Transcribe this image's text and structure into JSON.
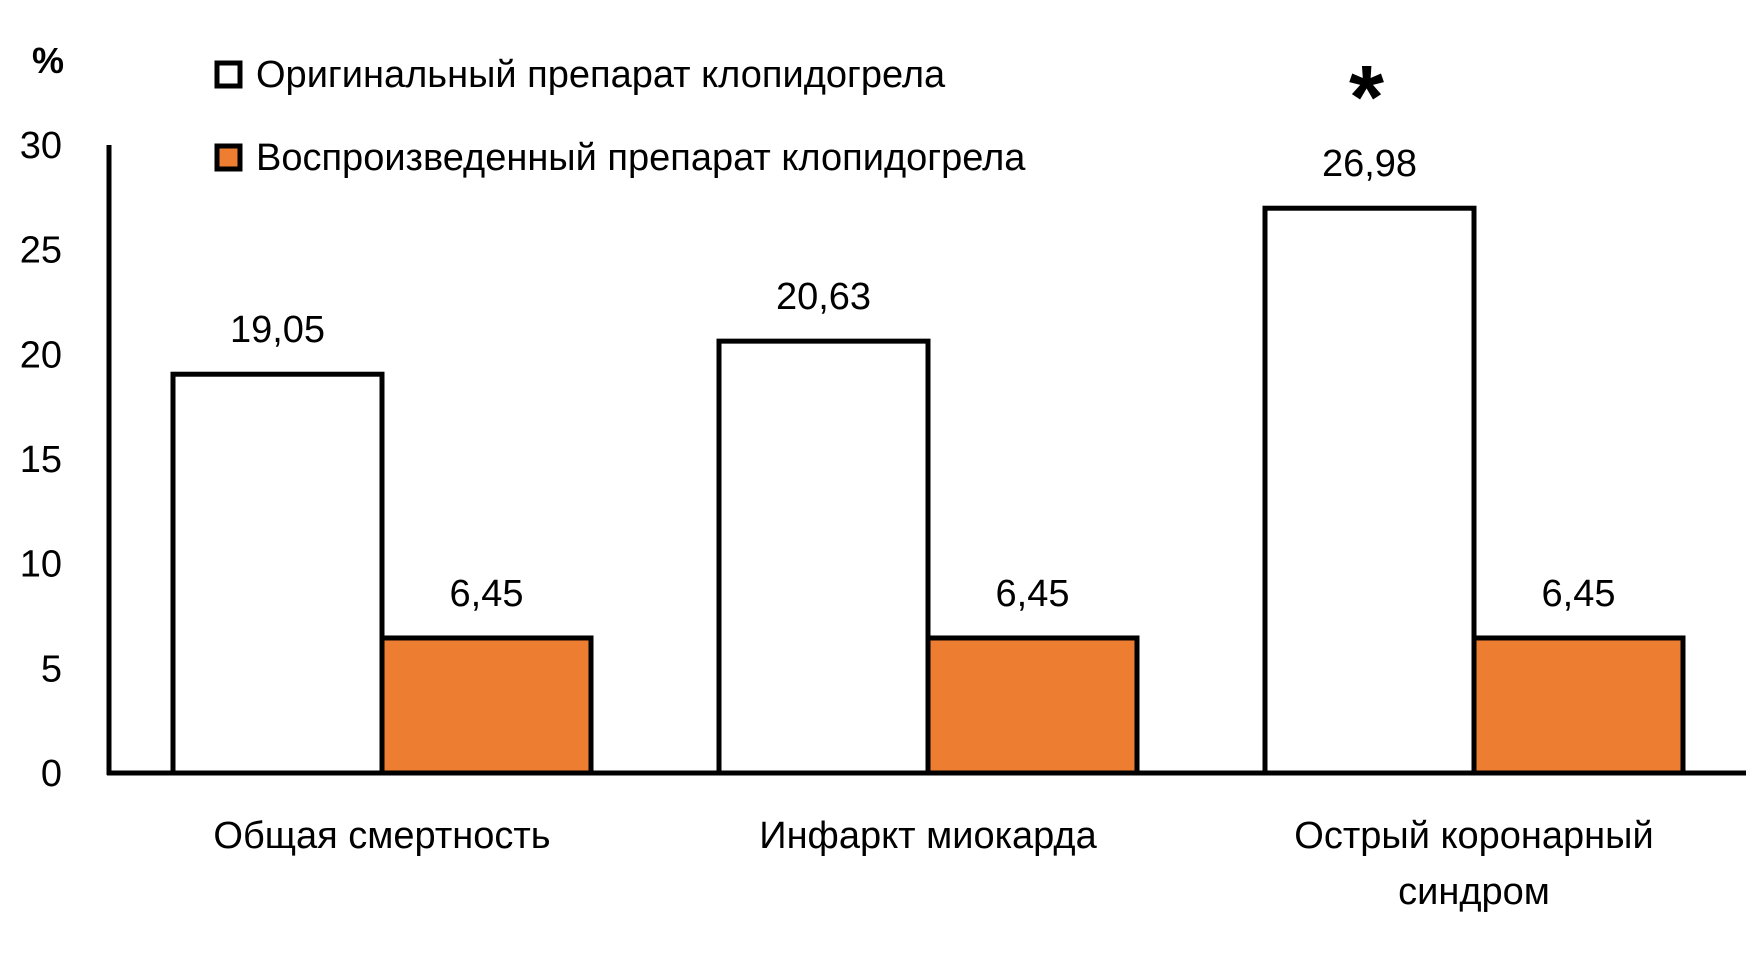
{
  "chart_data": {
    "type": "bar",
    "unit_label": "%",
    "categories": [
      [
        "Общая смертность"
      ],
      [
        "Инфаркт миокарда"
      ],
      [
        "Острый коронарный",
        "синдром"
      ]
    ],
    "series": [
      {
        "name": "Оригинальный препарат клопидогрела",
        "values": [
          19.05,
          20.63,
          26.98
        ],
        "labels": [
          "19,05",
          "20,63",
          "26,98"
        ],
        "color": "#ffffff"
      },
      {
        "name": "Воспроизведенный препарат клопидогрела",
        "values": [
          6.45,
          6.45,
          6.45
        ],
        "labels": [
          "6,45",
          "6,45",
          "6,45"
        ],
        "color": "#ed7d31"
      }
    ],
    "yticks": [
      "0",
      "5",
      "10",
      "15",
      "20",
      "25",
      "30"
    ],
    "ylim": [
      0,
      30
    ],
    "significance": {
      "marker": "*",
      "category_index": 2
    },
    "legend_position": "top-left",
    "grid": false
  }
}
